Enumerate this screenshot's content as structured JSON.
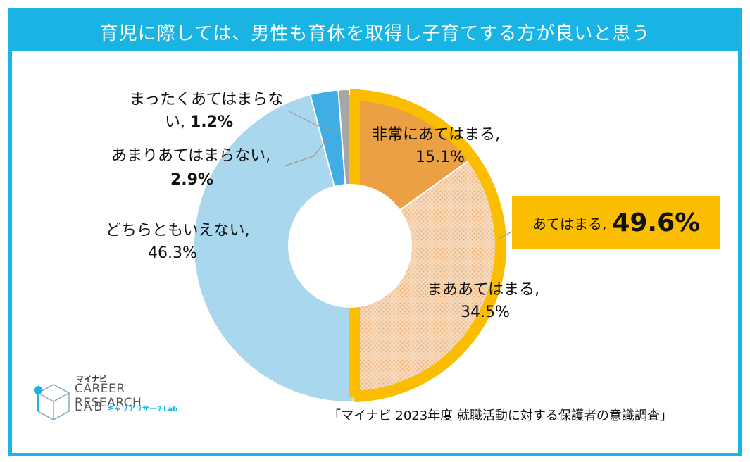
{
  "title": "育児に際しては、男性も育休を取得し子育てする方が良いと思う",
  "chart_data": {
    "type": "pie",
    "variant": "donut",
    "title": "育児に際しては、男性も育休を取得し子育てする方が良いと思う",
    "slices": [
      {
        "name": "非常にあてはまる",
        "value": 15.1,
        "label_line1": "非常にあてはまる,",
        "label_line2": "15.1%",
        "color": "#eba043"
      },
      {
        "name": "まああてはまる",
        "value": 34.5,
        "label_line1": "まああてはまる,",
        "label_line2": "34.5%",
        "color": "#f7d8b8"
      },
      {
        "name": "どちらともいえない",
        "value": 46.3,
        "label_line1": "どちらともいえない,",
        "label_line2": "46.3%",
        "color": "#a9d8ee"
      },
      {
        "name": "あまりあてはまらない",
        "value": 2.9,
        "label_line1": "あまりあてはまらない,",
        "label_line2": "2.9%",
        "color": "#3eaee5"
      },
      {
        "name": "まったくあてはまらない",
        "value": 1.2,
        "label_line1": "まったくあてはまらな",
        "label_line2a": "い, ",
        "label_line2b": "1.2%",
        "color": "#a6a6a6"
      }
    ],
    "highlight": {
      "label": "あてはまる,",
      "value": "49.6%",
      "color": "#fbbd00"
    }
  },
  "source": "「マイナビ 2023年度 就職活動に対する保護者の意識調査」",
  "logo": {
    "small": "マイナビ",
    "line1": "CAREER RESEARCH",
    "line2": "LAB",
    "jp": "キャリアリサーチLab"
  },
  "colors": {
    "accent": "#1ab4e4",
    "highlight": "#fbbd00"
  }
}
